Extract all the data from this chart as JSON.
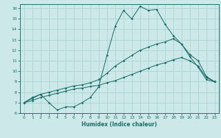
{
  "xlabel": "Humidex (Indice chaleur)",
  "bg_color": "#cce8e8",
  "line_color": "#1a6e6a",
  "grid_color": "#aad4d4",
  "xlim": [
    -0.5,
    23.5
  ],
  "ylim": [
    6,
    16.4
  ],
  "xticks": [
    0,
    1,
    2,
    3,
    4,
    5,
    6,
    7,
    8,
    9,
    10,
    11,
    12,
    13,
    14,
    15,
    16,
    17,
    18,
    19,
    20,
    21,
    22,
    23
  ],
  "yticks": [
    6,
    7,
    8,
    9,
    10,
    11,
    12,
    13,
    14,
    15,
    16
  ],
  "line1_x": [
    0,
    1,
    2,
    3,
    4,
    5,
    6,
    7,
    8,
    9,
    10,
    11,
    12,
    13,
    14,
    15,
    16,
    17,
    18,
    19,
    20,
    21,
    22,
    23
  ],
  "line1_y": [
    7.0,
    7.5,
    7.8,
    7.0,
    6.3,
    6.6,
    6.6,
    7.0,
    7.5,
    8.5,
    11.5,
    14.3,
    15.8,
    15.0,
    16.2,
    15.8,
    15.9,
    14.5,
    13.4,
    12.6,
    11.4,
    10.4,
    9.2,
    9.0
  ],
  "line2_x": [
    0,
    1,
    2,
    3,
    4,
    5,
    6,
    7,
    8,
    9,
    10,
    11,
    12,
    13,
    14,
    15,
    16,
    17,
    18,
    19,
    20,
    21,
    22,
    23
  ],
  "line2_y": [
    7.0,
    7.4,
    7.8,
    8.0,
    8.2,
    8.4,
    8.6,
    8.7,
    8.9,
    9.2,
    9.8,
    10.5,
    11.0,
    11.5,
    12.0,
    12.3,
    12.6,
    12.8,
    13.1,
    12.6,
    11.6,
    11.0,
    9.5,
    9.0
  ],
  "line3_x": [
    0,
    1,
    2,
    3,
    4,
    5,
    6,
    7,
    8,
    9,
    10,
    11,
    12,
    13,
    14,
    15,
    16,
    17,
    18,
    19,
    20,
    21,
    22,
    23
  ],
  "line3_y": [
    7.0,
    7.2,
    7.5,
    7.7,
    7.9,
    8.1,
    8.3,
    8.4,
    8.55,
    8.65,
    8.9,
    9.1,
    9.4,
    9.7,
    10.0,
    10.3,
    10.6,
    10.8,
    11.1,
    11.3,
    11.0,
    10.5,
    9.4,
    9.0
  ]
}
